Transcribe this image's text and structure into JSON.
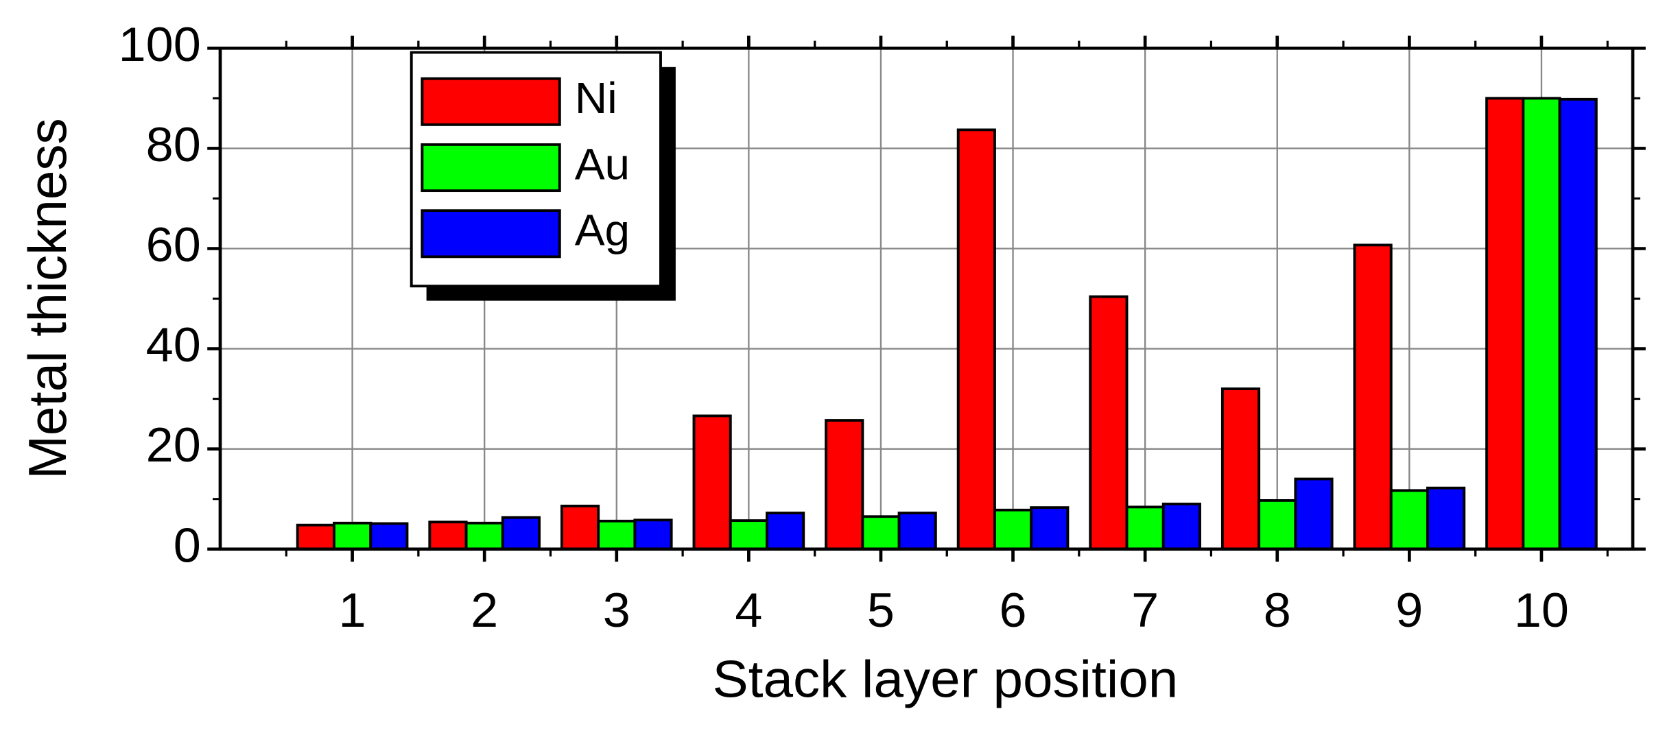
{
  "chart_data": {
    "type": "bar",
    "x_label": "Stack layer position",
    "y_label": "Metal thickness",
    "categories": [
      "1",
      "2",
      "3",
      "4",
      "5",
      "6",
      "7",
      "8",
      "9",
      "10"
    ],
    "series": [
      {
        "name": "Ni",
        "color": "#ff0000",
        "values": [
          4.8,
          5.4,
          8.6,
          26.6,
          25.7,
          83.7,
          50.4,
          32,
          60.7,
          90
        ]
      },
      {
        "name": "Au",
        "color": "#00ff00",
        "values": [
          5.2,
          5.2,
          5.6,
          5.7,
          6.5,
          7.8,
          8.4,
          9.7,
          11.7,
          90
        ]
      },
      {
        "name": "Ag",
        "color": "#0000ff",
        "values": [
          5.1,
          6.3,
          5.8,
          7.2,
          7.2,
          8.3,
          9.0,
          14.0,
          12.2,
          89.8
        ]
      }
    ],
    "ylim": [
      0,
      100
    ],
    "yticks": [
      0,
      20,
      40,
      60,
      80,
      100
    ],
    "grid": true,
    "legend": "upper left"
  }
}
